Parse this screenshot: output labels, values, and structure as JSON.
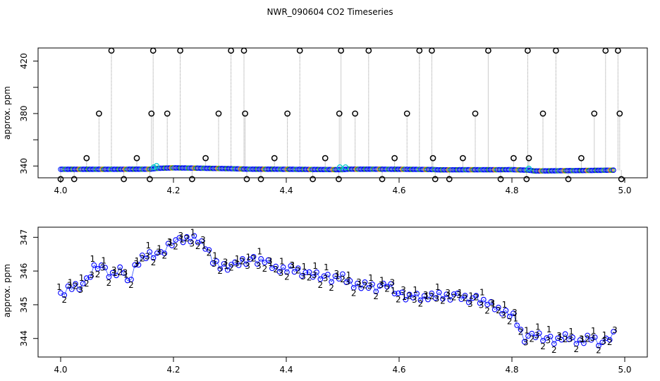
{
  "figure": {
    "title": "NWR_090604  CO2 Timeseries"
  },
  "chart_data": [
    {
      "type": "scatter",
      "ylabel": "approx. ppm",
      "xlim": [
        3.96,
        5.04
      ],
      "ylim": [
        331,
        430
      ],
      "xticks": [
        "4.0",
        "4.2",
        "4.4",
        "4.6",
        "4.8",
        "5.0"
      ],
      "yticks": [
        "340",
        "380",
        "420"
      ],
      "minor_yticks": [
        340,
        360,
        380,
        400,
        420
      ],
      "baseline": {
        "x": [
          4.0,
          4.1,
          4.16,
          4.17,
          4.2,
          4.3,
          4.33,
          4.4,
          4.5,
          4.51,
          4.6,
          4.66,
          4.67,
          4.8,
          4.83,
          4.84,
          4.98
        ],
        "y": [
          337.5,
          337.5,
          337.6,
          338.2,
          338.6,
          338.0,
          337.6,
          337.5,
          337.2,
          337.6,
          337.5,
          337.3,
          337.1,
          337.2,
          336.8,
          336.2,
          336.8
        ]
      },
      "spikes": [
        {
          "x": 4.0,
          "y": 330
        },
        {
          "x": 4.024,
          "y": 330
        },
        {
          "x": 4.046,
          "y": 346
        },
        {
          "x": 4.068,
          "y": 380
        },
        {
          "x": 4.09,
          "y": 428
        },
        {
          "x": 4.112,
          "y": 330
        },
        {
          "x": 4.135,
          "y": 346
        },
        {
          "x": 4.158,
          "y": 330
        },
        {
          "x": 4.161,
          "y": 380
        },
        {
          "x": 4.164,
          "y": 428
        },
        {
          "x": 4.189,
          "y": 380
        },
        {
          "x": 4.212,
          "y": 428
        },
        {
          "x": 4.233,
          "y": 330
        },
        {
          "x": 4.257,
          "y": 346
        },
        {
          "x": 4.28,
          "y": 380
        },
        {
          "x": 4.302,
          "y": 428
        },
        {
          "x": 4.325,
          "y": 428
        },
        {
          "x": 4.327,
          "y": 380
        },
        {
          "x": 4.33,
          "y": 330
        },
        {
          "x": 4.355,
          "y": 330
        },
        {
          "x": 4.379,
          "y": 346
        },
        {
          "x": 4.402,
          "y": 380
        },
        {
          "x": 4.424,
          "y": 428
        },
        {
          "x": 4.447,
          "y": 330
        },
        {
          "x": 4.469,
          "y": 346
        },
        {
          "x": 4.493,
          "y": 330
        },
        {
          "x": 4.494,
          "y": 380
        },
        {
          "x": 4.497,
          "y": 428
        },
        {
          "x": 4.522,
          "y": 380
        },
        {
          "x": 4.546,
          "y": 428
        },
        {
          "x": 4.57,
          "y": 330
        },
        {
          "x": 4.592,
          "y": 346
        },
        {
          "x": 4.614,
          "y": 380
        },
        {
          "x": 4.636,
          "y": 428
        },
        {
          "x": 4.658,
          "y": 428
        },
        {
          "x": 4.66,
          "y": 346
        },
        {
          "x": 4.664,
          "y": 330
        },
        {
          "x": 4.689,
          "y": 330
        },
        {
          "x": 4.713,
          "y": 346
        },
        {
          "x": 4.735,
          "y": 380
        },
        {
          "x": 4.758,
          "y": 428
        },
        {
          "x": 4.78,
          "y": 330
        },
        {
          "x": 4.803,
          "y": 346
        },
        {
          "x": 4.826,
          "y": 330
        },
        {
          "x": 4.828,
          "y": 428
        },
        {
          "x": 4.83,
          "y": 346
        },
        {
          "x": 4.855,
          "y": 380
        },
        {
          "x": 4.878,
          "y": 428
        },
        {
          "x": 4.9,
          "y": 330
        },
        {
          "x": 4.923,
          "y": 346
        },
        {
          "x": 4.946,
          "y": 380
        },
        {
          "x": 4.966,
          "y": 428
        },
        {
          "x": 4.988,
          "y": 428
        },
        {
          "x": 4.991,
          "y": 380
        },
        {
          "x": 4.994,
          "y": 330
        }
      ],
      "gap_markers": [
        {
          "x": 4.165,
          "y": 339
        },
        {
          "x": 4.17,
          "y": 340
        },
        {
          "x": 4.495,
          "y": 339
        },
        {
          "x": 4.505,
          "y": 339
        },
        {
          "x": 4.83,
          "y": 338
        }
      ]
    },
    {
      "type": "line",
      "ylabel": "approx. ppm",
      "xlim": [
        3.96,
        5.04
      ],
      "ylim": [
        343.45,
        347.3
      ],
      "xticks": [
        "4.0",
        "4.2",
        "4.4",
        "4.6",
        "4.8",
        "5.0"
      ],
      "yticks": [
        "344",
        "345",
        "346",
        "347"
      ],
      "markers": [
        "1",
        "2",
        "3"
      ],
      "colors": {
        "1": "#ff0000",
        "2": "#00bb00",
        "3": "#0000ff",
        "circle": "#0000ff"
      },
      "curve": {
        "x": [
          4.0,
          4.01,
          4.02,
          4.03,
          4.04,
          4.05,
          4.06,
          4.07,
          4.08,
          4.09,
          4.1,
          4.11,
          4.12,
          4.13,
          4.14,
          4.15,
          4.16,
          4.17,
          4.18,
          4.19,
          4.2,
          4.21,
          4.22,
          4.23,
          4.24,
          4.25,
          4.26,
          4.27,
          4.28,
          4.3,
          4.32,
          4.34,
          4.36,
          4.38,
          4.4,
          4.42,
          4.44,
          4.46,
          4.48,
          4.5,
          4.52,
          4.54,
          4.56,
          4.58,
          4.6,
          4.62,
          4.64,
          4.66,
          4.68,
          4.7,
          4.72,
          4.74,
          4.76,
          4.78,
          4.8,
          4.81,
          4.82,
          4.84,
          4.86,
          4.88,
          4.9,
          4.92,
          4.94,
          4.96,
          4.98
        ],
        "y": [
          345.3,
          345.4,
          345.5,
          345.55,
          345.6,
          345.8,
          346.1,
          346.2,
          346.0,
          345.9,
          345.9,
          346.1,
          345.6,
          346.1,
          346.3,
          346.4,
          346.5,
          346.5,
          346.5,
          346.7,
          346.9,
          346.9,
          347.0,
          346.9,
          346.95,
          346.85,
          346.7,
          346.3,
          346.1,
          346.15,
          346.25,
          346.35,
          346.3,
          346.1,
          346.05,
          346.0,
          345.9,
          345.85,
          345.8,
          345.8,
          345.6,
          345.55,
          345.5,
          345.6,
          345.3,
          345.25,
          345.2,
          345.3,
          345.2,
          345.3,
          345.15,
          345.2,
          345.0,
          344.85,
          344.7,
          344.4,
          344.0,
          344.1,
          344.0,
          343.95,
          344.05,
          343.9,
          344.0,
          343.85,
          344.1
        ]
      },
      "noise": [
        0.05,
        -0.08,
        0.12,
        -0.04,
        0.09,
        -0.11,
        0.03,
        0.07,
        -0.06,
        0.1,
        -0.09,
        0.02,
        0.08,
        -0.12,
        0.05,
        -0.03,
        0.11,
        -0.07,
        0.04,
        -0.1
      ],
      "label_offsets": {
        "1": 0.14,
        "2": -0.12,
        "3": 0.0
      }
    }
  ]
}
